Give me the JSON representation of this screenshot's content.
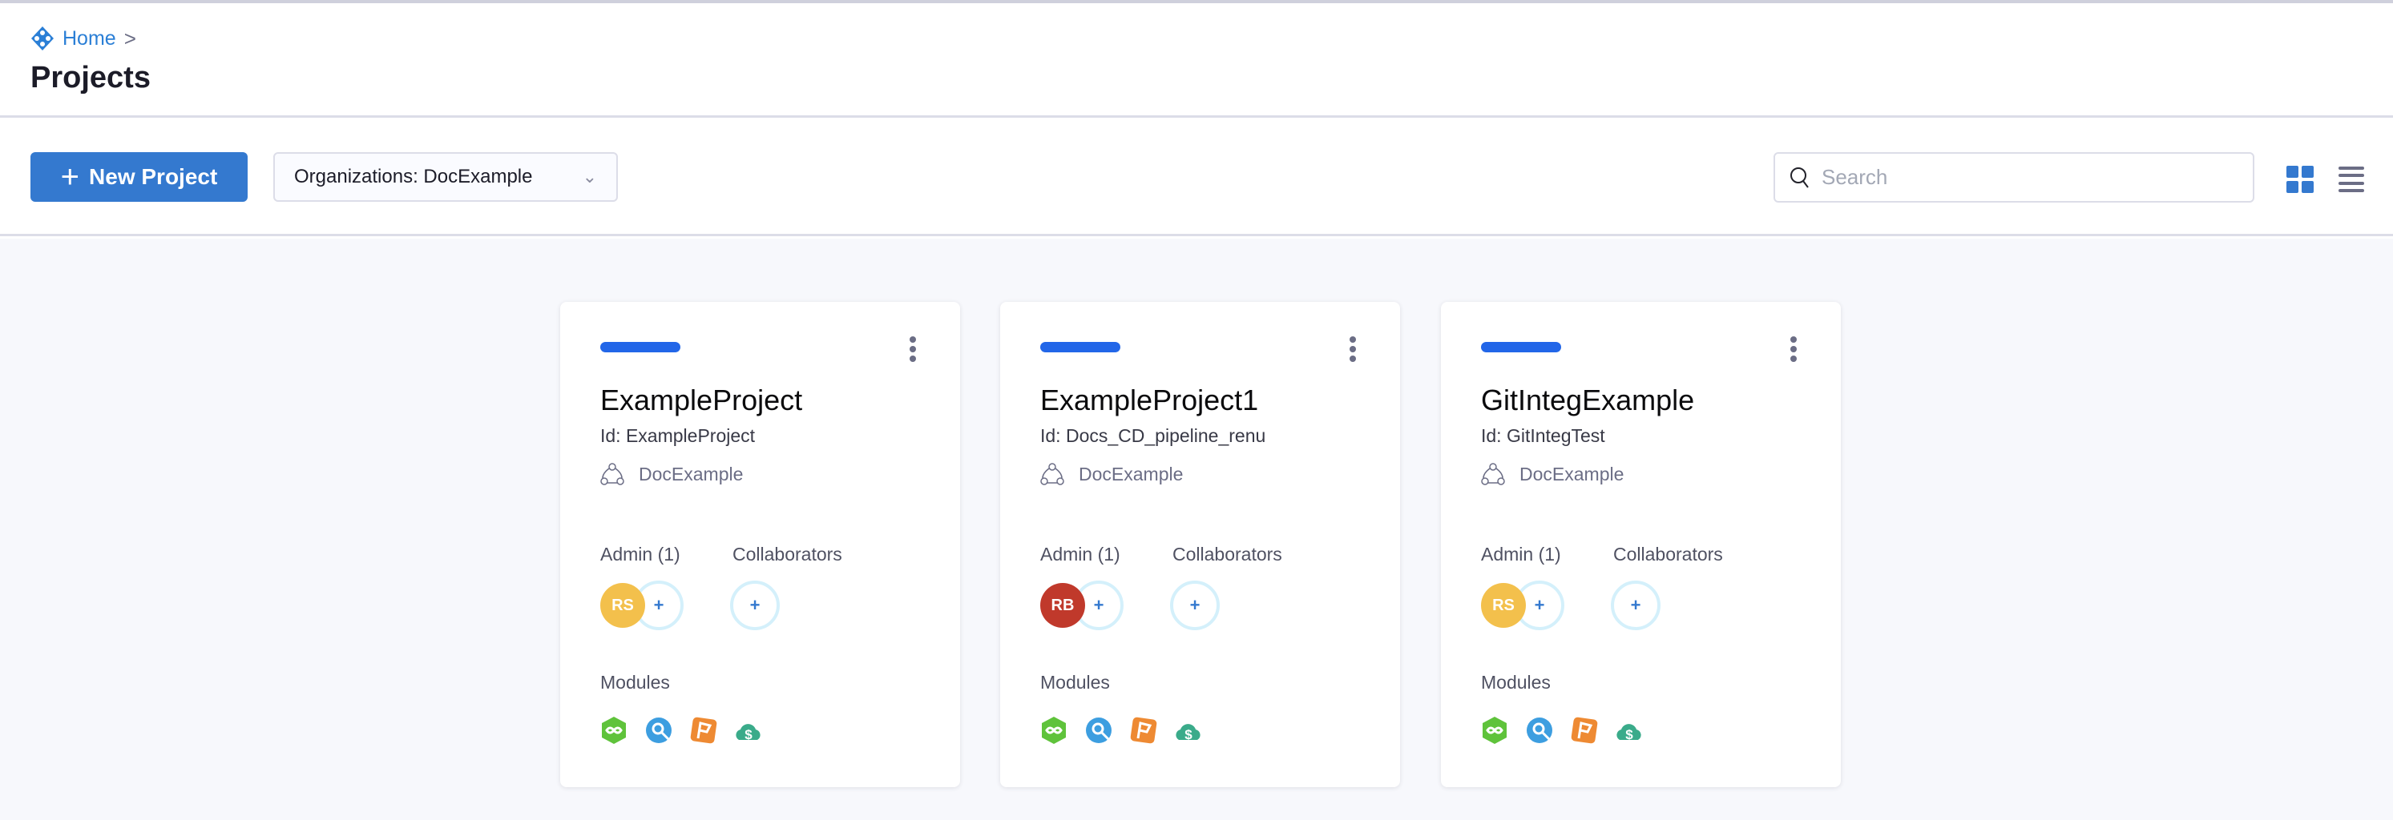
{
  "breadcrumb": {
    "home": "Home",
    "separator": ">"
  },
  "page_title": "Projects",
  "toolbar": {
    "new_project_label": "New Project",
    "org_select": "Organizations: DocExample",
    "search_placeholder": "Search",
    "search_value": "",
    "view_mode": "grid"
  },
  "colors": {
    "primary": "#3479cf",
    "card_bar": "#2266e8"
  },
  "projects": [
    {
      "name": "ExampleProject",
      "id": "Id: ExampleProject",
      "org": "DocExample",
      "admin_label": "Admin (1)",
      "collaborators_label": "Collaborators",
      "admin": {
        "initials": "RS",
        "color": "#f3c04c"
      },
      "add": "+",
      "modules_label": "Modules",
      "modules": [
        "cd-icon",
        "ci-icon",
        "ff-icon",
        "ccm-icon"
      ]
    },
    {
      "name": "ExampleProject1",
      "id": "Id: Docs_CD_pipeline_renu",
      "org": "DocExample",
      "admin_label": "Admin (1)",
      "collaborators_label": "Collaborators",
      "admin": {
        "initials": "RB",
        "color": "#c0392b"
      },
      "add": "+",
      "modules_label": "Modules",
      "modules": [
        "cd-icon",
        "ci-icon",
        "ff-icon",
        "ccm-icon"
      ]
    },
    {
      "name": "GitIntegExample",
      "id": "Id: GitIntegTest",
      "org": "DocExample",
      "admin_label": "Admin (1)",
      "collaborators_label": "Collaborators",
      "admin": {
        "initials": "RS",
        "color": "#f3c04c"
      },
      "add": "+",
      "modules_label": "Modules",
      "modules": [
        "cd-icon",
        "ci-icon",
        "ff-icon",
        "ccm-icon"
      ]
    }
  ]
}
